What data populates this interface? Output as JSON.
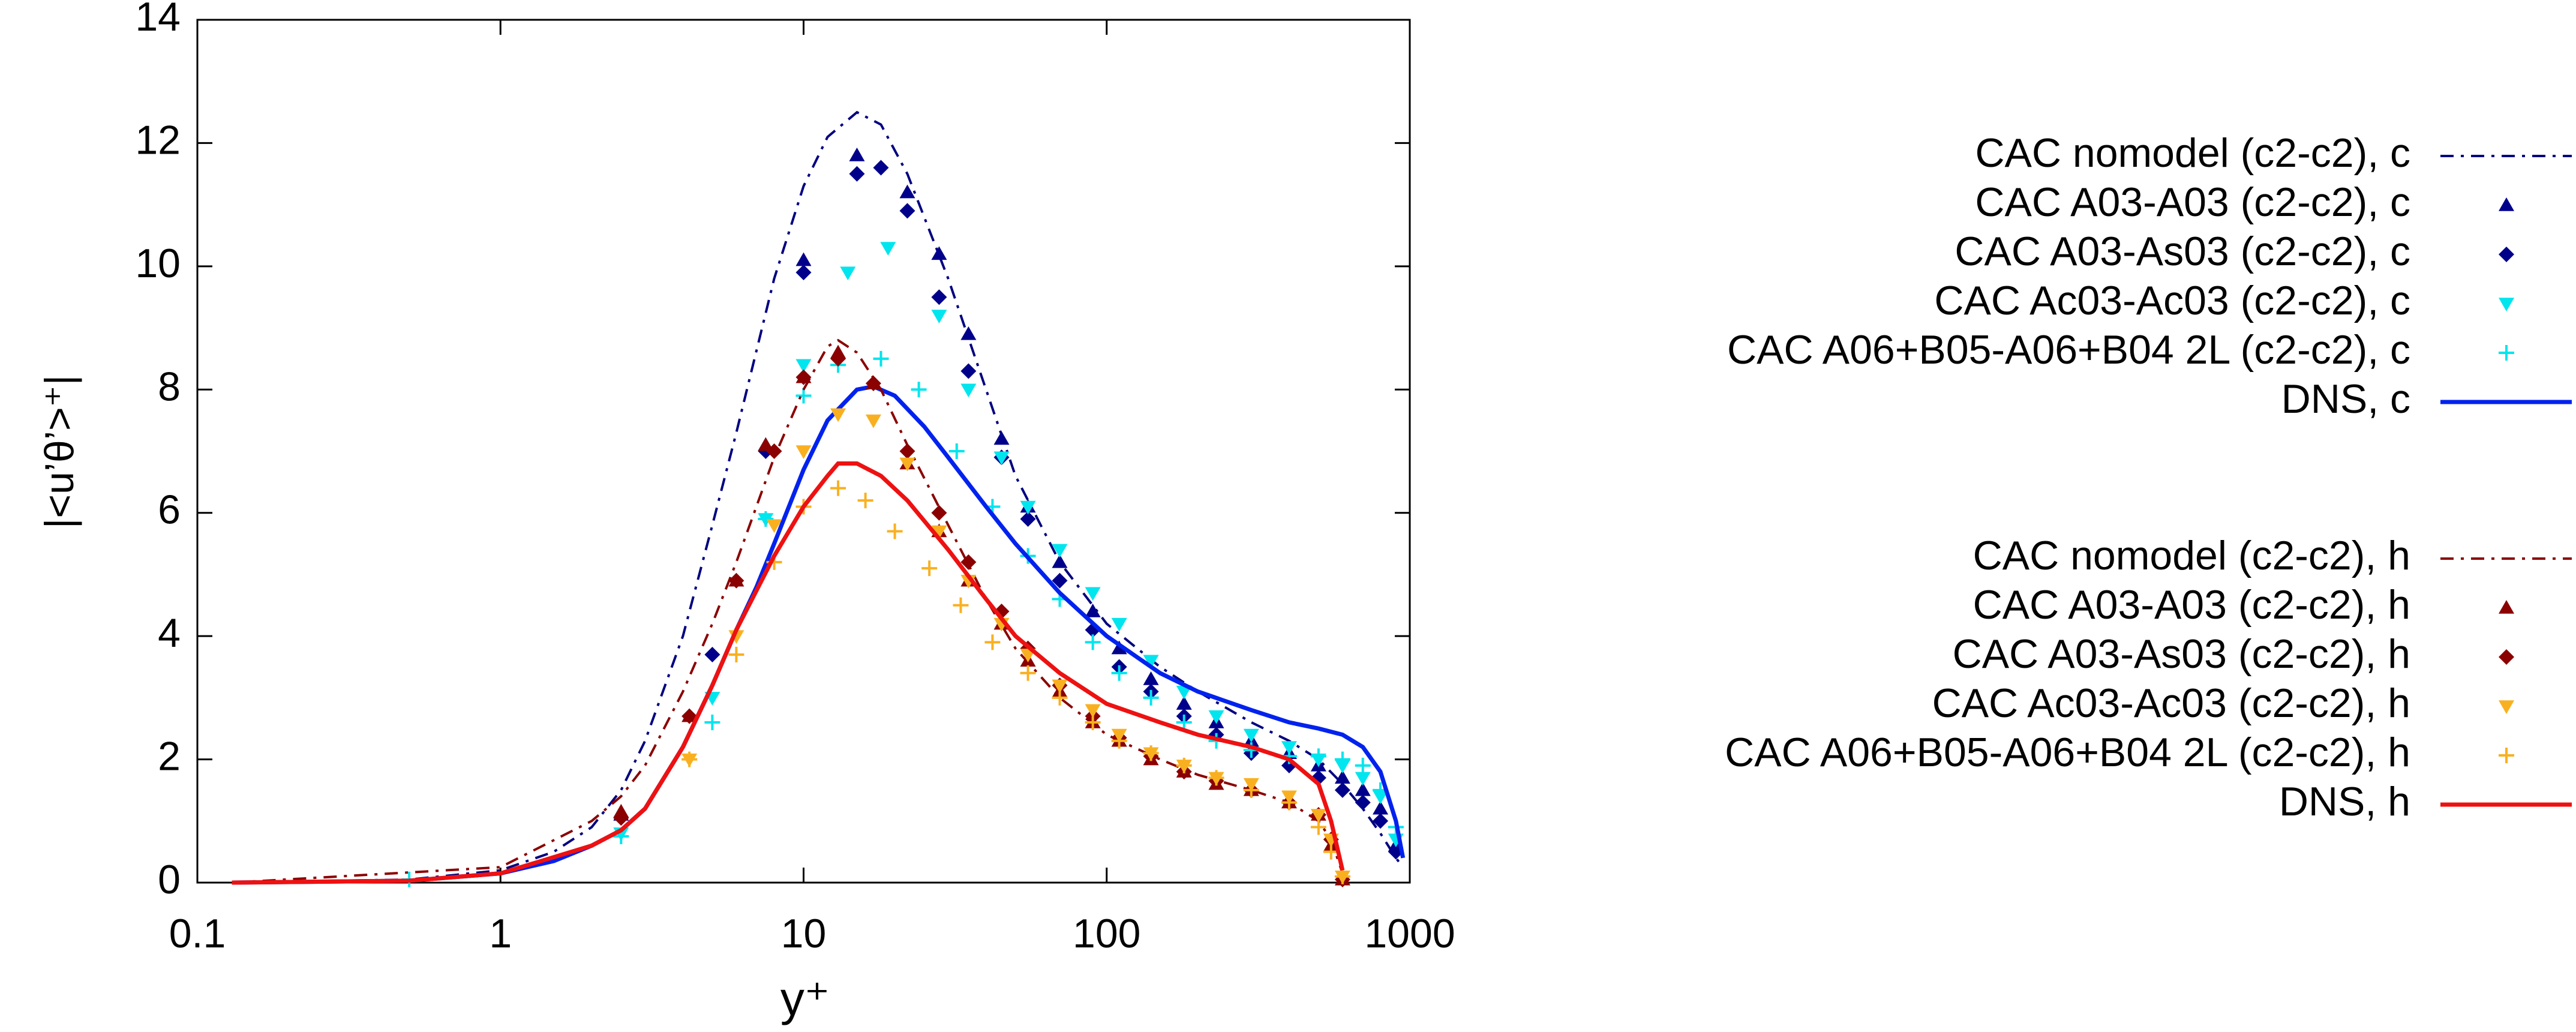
{
  "chart_data": {
    "type": "line",
    "xlabel": "y⁺",
    "ylabel": "|<u’θ’>⁺|",
    "xscale": "log",
    "xlim": [
      0.1,
      1000
    ],
    "xticks": [
      0.1,
      1,
      10,
      100,
      1000
    ],
    "ylim": [
      0,
      14
    ],
    "yticks": [
      0,
      2,
      4,
      6,
      8,
      10,
      12,
      14
    ],
    "series": [
      {
        "name": "CAC nomodel (c2-c2), c",
        "color": "#000080",
        "style": "line",
        "dash": "dash-dot",
        "x": [
          0.13,
          0.5,
          1,
          1.5,
          2,
          2.5,
          3,
          4,
          5,
          6,
          8,
          10,
          12,
          15,
          18,
          22,
          30,
          40,
          50,
          70,
          100,
          150,
          200,
          300,
          400,
          500,
          600,
          700,
          800,
          900,
          950
        ],
        "values": [
          0,
          0.05,
          0.2,
          0.5,
          0.9,
          1.5,
          2.3,
          4,
          5.8,
          7.3,
          9.8,
          11.3,
          12.1,
          12.5,
          12.3,
          11.5,
          9.8,
          8,
          6.6,
          5.2,
          4.2,
          3.5,
          3.1,
          2.6,
          2.3,
          2.0,
          1.6,
          1.2,
          0.8,
          0.4,
          0.25
        ]
      },
      {
        "name": "CAC A03-A03 (c2-c2), c",
        "color": "#00008b",
        "style": "points",
        "marker": "triangle-up",
        "x": [
          2.5,
          7.5,
          10,
          15,
          22,
          28,
          35,
          45,
          55,
          70,
          90,
          110,
          140,
          180,
          230,
          300,
          400,
          500,
          600,
          700,
          800,
          900
        ],
        "values": [
          1.1,
          7.1,
          10.1,
          11.8,
          11.2,
          10.2,
          8.9,
          7.2,
          6.1,
          5.2,
          4.4,
          3.8,
          3.3,
          2.9,
          2.6,
          2.3,
          2.1,
          1.9,
          1.7,
          1.5,
          1.2,
          0.6
        ]
      },
      {
        "name": "CAC A03-As03 (c2-c2), c",
        "color": "#00008b",
        "style": "points",
        "marker": "diamond",
        "x": [
          2.5,
          5,
          7.5,
          10,
          15,
          18,
          22,
          28,
          35,
          45,
          55,
          70,
          90,
          110,
          140,
          180,
          230,
          300,
          400,
          500,
          600,
          700,
          800,
          900
        ],
        "values": [
          1.05,
          3.7,
          7.0,
          9.9,
          11.5,
          11.6,
          10.9,
          9.5,
          8.3,
          6.9,
          5.9,
          4.9,
          4.1,
          3.5,
          3.1,
          2.7,
          2.4,
          2.1,
          1.9,
          1.7,
          1.5,
          1.3,
          1.0,
          0.5
        ]
      },
      {
        "name": "CAC Ac03-Ac03 (c2-c2), c",
        "color": "#00e5ee",
        "style": "points",
        "marker": "triangle-down",
        "x": [
          2.5,
          5,
          7.5,
          10,
          14,
          19,
          28,
          35,
          45,
          55,
          70,
          90,
          110,
          140,
          180,
          230,
          300,
          400,
          500,
          600,
          700,
          800,
          900
        ],
        "values": [
          0.8,
          3.0,
          5.9,
          8.4,
          9.9,
          10.3,
          9.2,
          8.0,
          6.9,
          6.1,
          5.4,
          4.7,
          4.2,
          3.6,
          3.1,
          2.7,
          2.4,
          2.2,
          2.0,
          1.9,
          1.7,
          1.4,
          0.7
        ]
      },
      {
        "name": "CAC A06+B05-A06+B04 2L (c2-c2), c",
        "color": "#00e5ee",
        "style": "points",
        "marker": "plus",
        "x": [
          0.5,
          2.5,
          5,
          7.5,
          10,
          13,
          18,
          24,
          32,
          42,
          55,
          70,
          90,
          110,
          140,
          180,
          230,
          300,
          400,
          500,
          600,
          700,
          800,
          900
        ],
        "values": [
          0.05,
          0.75,
          2.6,
          5.9,
          7.9,
          8.4,
          8.5,
          8.0,
          7.0,
          6.1,
          5.3,
          4.6,
          3.9,
          3.4,
          3.0,
          2.6,
          2.3,
          2.15,
          2.05,
          2.05,
          2.0,
          1.9,
          1.5,
          0.9
        ]
      },
      {
        "name": "DNS, c",
        "color": "#0022ee",
        "style": "line",
        "dash": "solid",
        "x": [
          0.13,
          0.5,
          1,
          1.5,
          2,
          2.5,
          3,
          4,
          5,
          6,
          7,
          8,
          10,
          12,
          15,
          17,
          20,
          25,
          30,
          40,
          50,
          70,
          100,
          150,
          200,
          300,
          400,
          500,
          600,
          700,
          800,
          900,
          950
        ],
        "values": [
          0,
          0.03,
          0.15,
          0.35,
          0.6,
          0.85,
          1.2,
          2.2,
          3.2,
          4.1,
          4.8,
          5.5,
          6.7,
          7.5,
          8.0,
          8.05,
          7.9,
          7.4,
          6.9,
          6.1,
          5.5,
          4.7,
          4.0,
          3.4,
          3.1,
          2.8,
          2.6,
          2.5,
          2.4,
          2.2,
          1.8,
          1.0,
          0.4
        ]
      },
      {
        "name": "CAC nomodel (c2-c2), h",
        "color": "#8b0000",
        "style": "line",
        "dash": "dash-dot",
        "x": [
          0.13,
          1,
          2,
          2.5,
          3,
          4,
          5,
          6,
          8,
          10,
          12,
          13,
          15,
          18,
          22,
          30,
          40,
          50,
          70,
          100,
          150,
          200,
          300,
          400,
          500,
          550,
          600
        ],
        "values": [
          0,
          0.25,
          1.0,
          1.4,
          1.9,
          3.1,
          4.2,
          5.2,
          6.9,
          8.0,
          8.7,
          8.8,
          8.6,
          8.0,
          7.1,
          5.8,
          4.6,
          3.8,
          3.0,
          2.4,
          2.0,
          1.75,
          1.5,
          1.3,
          1.0,
          0.7,
          0.15
        ]
      },
      {
        "name": "CAC A03-A03 (c2-c2), h",
        "color": "#8b0000",
        "style": "points",
        "marker": "triangle-up",
        "x": [
          2.5,
          4.2,
          6,
          7.5,
          10,
          13,
          17,
          22,
          28,
          35,
          45,
          55,
          70,
          90,
          110,
          140,
          180,
          230,
          300,
          400,
          500,
          550,
          600
        ],
        "values": [
          1.15,
          2.7,
          4.9,
          7.1,
          8.2,
          8.6,
          8.1,
          6.8,
          5.7,
          4.9,
          4.2,
          3.6,
          3.1,
          2.6,
          2.3,
          2.0,
          1.8,
          1.6,
          1.5,
          1.3,
          1.1,
          0.6,
          0.05
        ]
      },
      {
        "name": "CAC A03-As03 (c2-c2), h",
        "color": "#8b0000",
        "style": "points",
        "marker": "diamond",
        "x": [
          2.5,
          4.2,
          6,
          8,
          10,
          13,
          17,
          22,
          28,
          35,
          45,
          55,
          70,
          90,
          110,
          140,
          180,
          230,
          300,
          400,
          500,
          550,
          600
        ],
        "values": [
          1.05,
          2.7,
          4.9,
          7.0,
          8.2,
          8.5,
          8.1,
          7.0,
          6.0,
          5.2,
          4.4,
          3.8,
          3.2,
          2.7,
          2.35,
          2.05,
          1.8,
          1.65,
          1.5,
          1.3,
          1.1,
          0.7,
          0.05
        ]
      },
      {
        "name": "CAC Ac03-Ac03 (c2-c2), h",
        "color": "#f9b020",
        "style": "points",
        "marker": "triangle-down",
        "x": [
          4.2,
          6,
          8,
          10,
          13,
          17,
          22,
          28,
          35,
          45,
          55,
          70,
          90,
          110,
          140,
          180,
          230,
          300,
          400,
          500,
          550,
          600
        ],
        "values": [
          2.0,
          4.0,
          5.8,
          7.0,
          7.6,
          7.5,
          6.8,
          5.7,
          4.9,
          4.2,
          3.7,
          3.2,
          2.8,
          2.4,
          2.1,
          1.9,
          1.7,
          1.6,
          1.4,
          1.1,
          0.7,
          0.1
        ]
      },
      {
        "name": "CAC A06+B05-A06+B04 2L (c2-c2), h",
        "color": "#f9b020",
        "style": "points",
        "marker": "plus",
        "x": [
          4.2,
          6,
          8,
          10,
          13,
          16,
          20,
          26,
          33,
          42,
          55,
          70,
          90,
          110,
          140,
          180,
          230,
          300,
          400,
          500,
          550,
          600
        ],
        "values": [
          2.0,
          3.7,
          5.2,
          6.1,
          6.4,
          6.2,
          5.7,
          5.1,
          4.5,
          3.9,
          3.4,
          3.0,
          2.6,
          2.3,
          2.1,
          1.9,
          1.7,
          1.5,
          1.3,
          0.9,
          0.5,
          0.1
        ]
      },
      {
        "name": "DNS, h",
        "color": "#ee1111",
        "style": "line",
        "dash": "solid",
        "x": [
          0.13,
          0.5,
          1,
          2,
          2.5,
          3,
          4,
          5,
          6,
          8,
          10,
          12,
          13,
          15,
          18,
          22,
          30,
          40,
          50,
          70,
          100,
          150,
          200,
          300,
          400,
          500,
          550,
          600
        ],
        "values": [
          0,
          0.03,
          0.15,
          0.6,
          0.85,
          1.2,
          2.2,
          3.2,
          4.1,
          5.3,
          6.1,
          6.6,
          6.8,
          6.8,
          6.6,
          6.2,
          5.4,
          4.6,
          4.0,
          3.4,
          2.9,
          2.6,
          2.4,
          2.2,
          2.0,
          1.6,
          1.0,
          0.2
        ]
      }
    ]
  }
}
